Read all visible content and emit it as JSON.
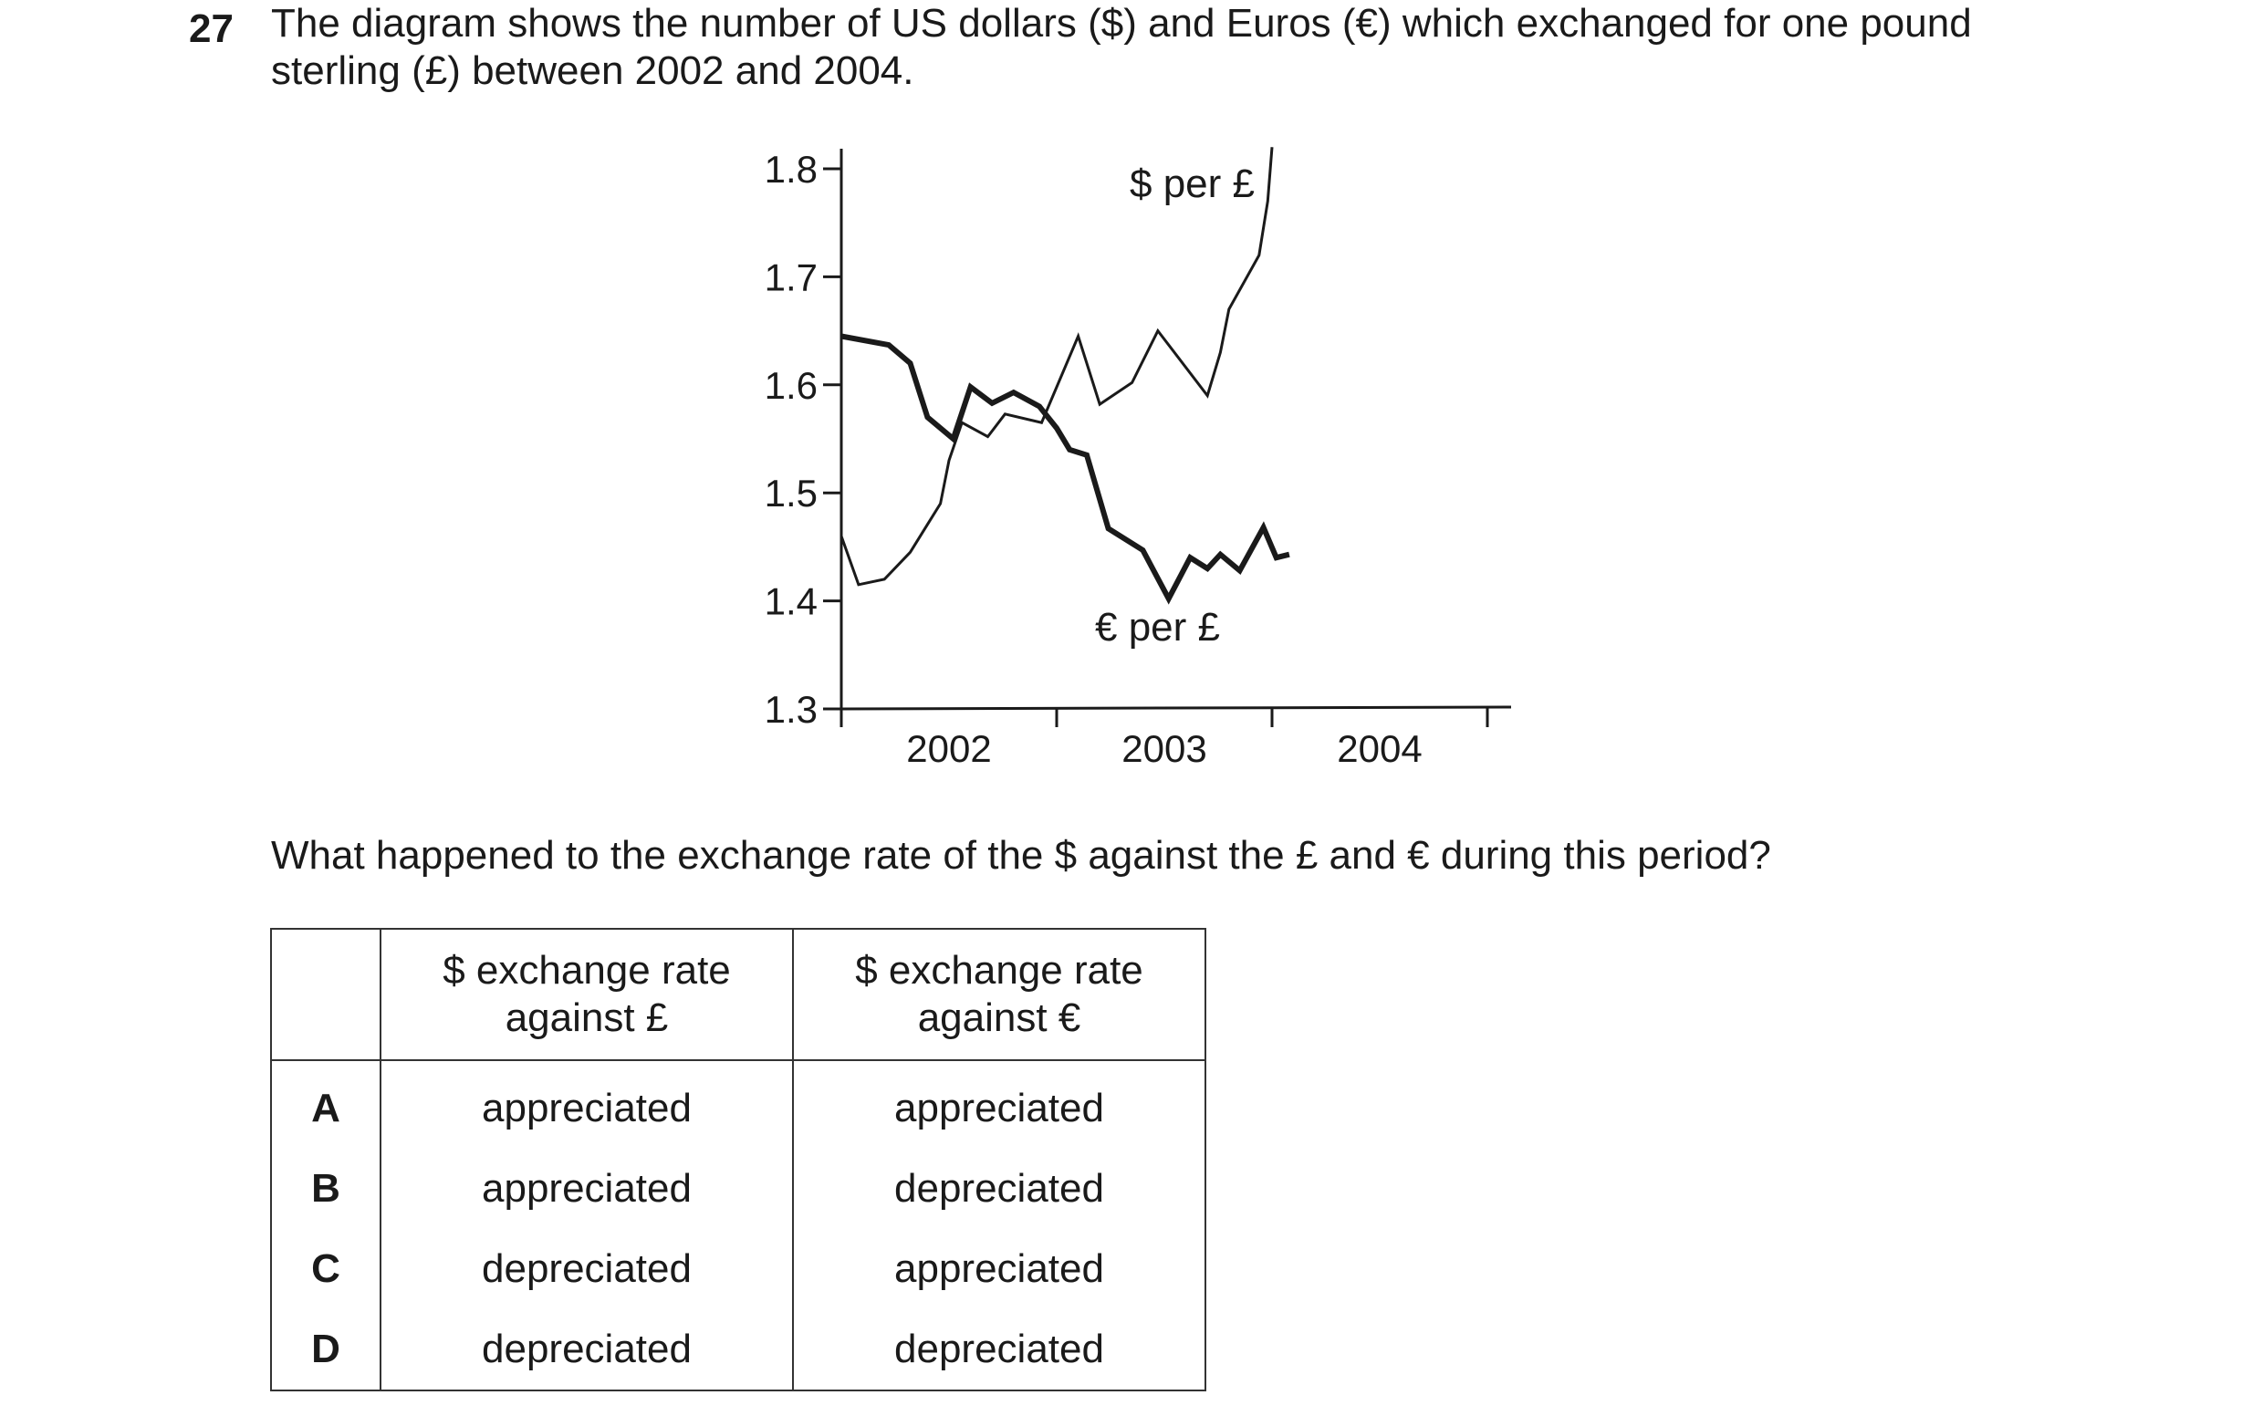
{
  "question": {
    "number": "27",
    "stem_line1": "The diagram shows the number of US dollars ($) and Euros (€) which exchanged for one pound",
    "stem_line2": "sterling (£) between 2002 and 2004.",
    "prompt": "What happened to the exchange rate of the $ against the £ and € during this period?"
  },
  "chart_data": {
    "type": "line",
    "title": "",
    "xlabel": "",
    "ylabel": "",
    "x_ticks": [
      "2002",
      "2003",
      "2004"
    ],
    "xlim": [
      2002,
      2005.1
    ],
    "y_ticks": [
      "1.8",
      "1.7",
      "1.6",
      "1.5",
      "1.4",
      "1.3"
    ],
    "ylim": [
      1.3,
      1.8
    ],
    "grid": false,
    "series": [
      {
        "name": "$ per £",
        "line_style": "thin",
        "points": [
          [
            2002.0,
            1.46
          ],
          [
            2002.08,
            1.415
          ],
          [
            2002.2,
            1.42
          ],
          [
            2002.32,
            1.445
          ],
          [
            2002.46,
            1.49
          ],
          [
            2002.5,
            1.53
          ],
          [
            2002.56,
            1.565
          ],
          [
            2002.68,
            1.552
          ],
          [
            2002.76,
            1.573
          ],
          [
            2002.93,
            1.565
          ],
          [
            2003.1,
            1.645
          ],
          [
            2003.2,
            1.582
          ],
          [
            2003.35,
            1.602
          ],
          [
            2003.47,
            1.65
          ],
          [
            2003.7,
            1.59
          ],
          [
            2003.76,
            1.63
          ],
          [
            2003.8,
            1.67
          ],
          [
            2003.94,
            1.72
          ],
          [
            2003.98,
            1.77
          ],
          [
            2004.0,
            1.82
          ]
        ]
      },
      {
        "name": "€ per £",
        "line_style": "thick",
        "points": [
          [
            2002.0,
            1.645
          ],
          [
            2002.22,
            1.637
          ],
          [
            2002.32,
            1.62
          ],
          [
            2002.4,
            1.57
          ],
          [
            2002.52,
            1.55
          ],
          [
            2002.6,
            1.598
          ],
          [
            2002.7,
            1.583
          ],
          [
            2002.8,
            1.593
          ],
          [
            2002.92,
            1.58
          ],
          [
            2003.0,
            1.56
          ],
          [
            2003.06,
            1.54
          ],
          [
            2003.14,
            1.535
          ],
          [
            2003.24,
            1.467
          ],
          [
            2003.4,
            1.447
          ],
          [
            2003.52,
            1.402
          ],
          [
            2003.62,
            1.44
          ],
          [
            2003.7,
            1.43
          ],
          [
            2003.76,
            1.443
          ],
          [
            2003.85,
            1.428
          ],
          [
            2003.96,
            1.468
          ],
          [
            2004.02,
            1.44
          ],
          [
            2004.08,
            1.443
          ]
        ]
      }
    ]
  },
  "table": {
    "headers": [
      "",
      "$ exchange rate against £",
      "$ exchange rate against €"
    ],
    "header_lines": [
      [
        "$ exchange rate",
        "against £"
      ],
      [
        "$ exchange rate",
        "against €"
      ]
    ],
    "rows": [
      {
        "letter": "A",
        "col1": "appreciated",
        "col2": "appreciated"
      },
      {
        "letter": "B",
        "col1": "appreciated",
        "col2": "depreciated"
      },
      {
        "letter": "C",
        "col1": "depreciated",
        "col2": "appreciated"
      },
      {
        "letter": "D",
        "col1": "depreciated",
        "col2": "depreciated"
      }
    ]
  }
}
